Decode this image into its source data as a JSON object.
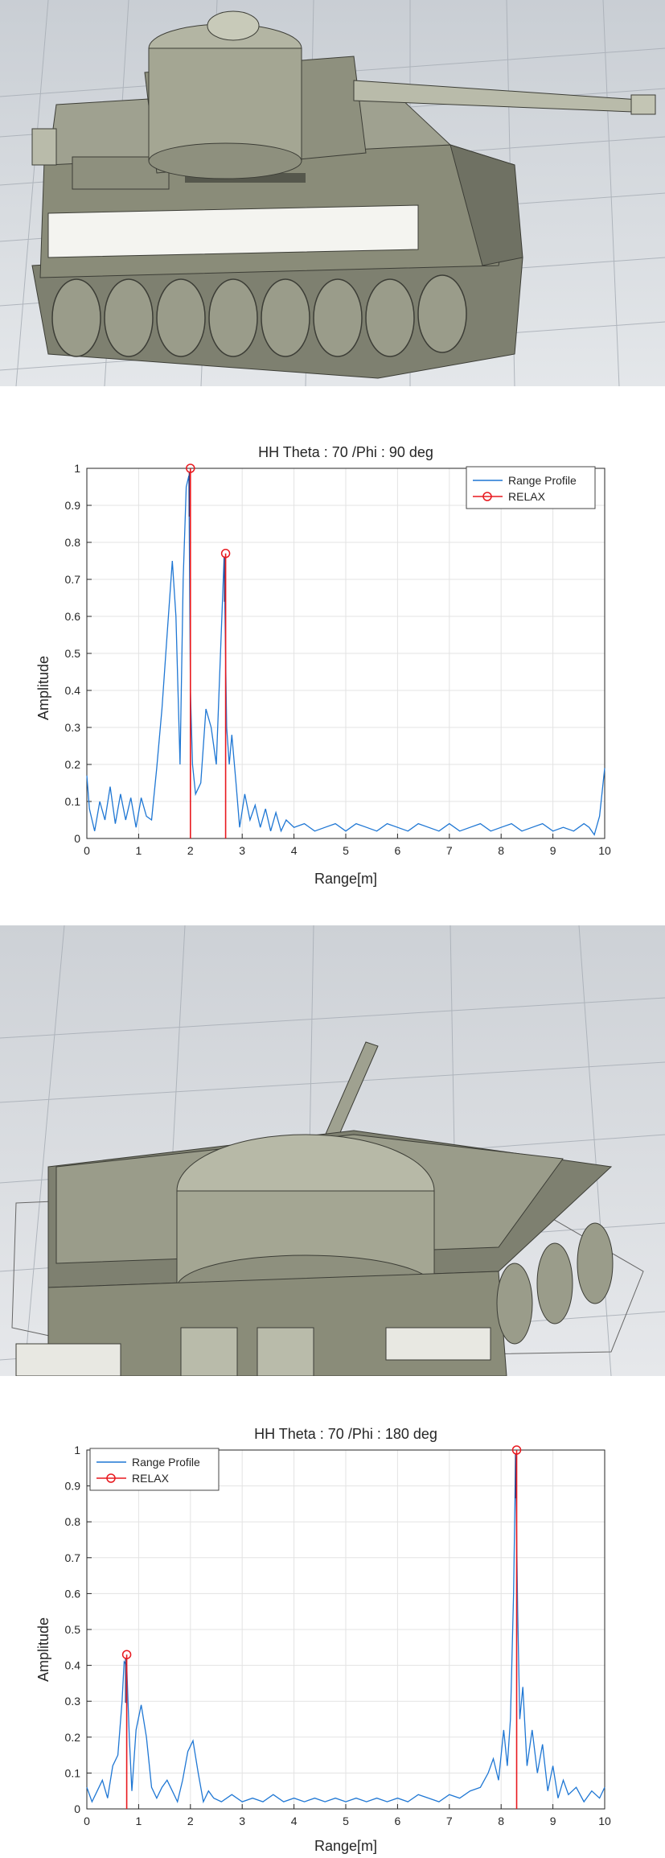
{
  "charts": [
    {
      "title": "HH Theta : 70 /Phi : 90 deg",
      "xlabel": "Range[m]",
      "ylabel": "Amplitude",
      "legend": [
        "Range Profile",
        "RELAX"
      ],
      "legend_position": "top-right"
    },
    {
      "title": "HH Theta : 70 /Phi : 180 deg",
      "xlabel": "Range[m]",
      "ylabel": "Amplitude",
      "legend": [
        "Range Profile",
        "RELAX"
      ],
      "legend_position": "top-left"
    }
  ],
  "colors": {
    "range_profile": "#1f77d4",
    "relax": "#e8191f",
    "stem_dark": "#2b2b6b"
  },
  "chart_data": [
    {
      "type": "line",
      "title": "HH Theta : 70 /Phi : 90 deg",
      "xlabel": "Range[m]",
      "ylabel": "Amplitude",
      "xlim": [
        0,
        10
      ],
      "ylim": [
        0,
        1
      ],
      "x_ticks": [
        0,
        1,
        2,
        3,
        4,
        5,
        6,
        7,
        8,
        9,
        10
      ],
      "y_ticks": [
        0,
        0.1,
        0.2,
        0.3,
        0.4,
        0.5,
        0.6,
        0.7,
        0.8,
        0.9,
        1
      ],
      "grid": true,
      "legend_position": "top-right",
      "series": [
        {
          "name": "Range Profile",
          "x": [
            0,
            0.05,
            0.15,
            0.25,
            0.35,
            0.45,
            0.55,
            0.65,
            0.75,
            0.85,
            0.95,
            1.05,
            1.15,
            1.25,
            1.35,
            1.45,
            1.55,
            1.65,
            1.72,
            1.8,
            1.86,
            1.92,
            1.97,
            2.0,
            2.04,
            2.1,
            2.2,
            2.3,
            2.4,
            2.5,
            2.58,
            2.65,
            2.7,
            2.75,
            2.8,
            2.88,
            2.95,
            3.05,
            3.15,
            3.25,
            3.35,
            3.45,
            3.55,
            3.65,
            3.75,
            3.85,
            4.0,
            4.2,
            4.4,
            4.6,
            4.8,
            5.0,
            5.2,
            5.4,
            5.6,
            5.8,
            6.0,
            6.2,
            6.4,
            6.6,
            6.8,
            7.0,
            7.2,
            7.4,
            7.6,
            7.8,
            8.0,
            8.2,
            8.4,
            8.6,
            8.8,
            9.0,
            9.2,
            9.4,
            9.6,
            9.7,
            9.8,
            9.9,
            10.0
          ],
          "y": [
            0.17,
            0.08,
            0.02,
            0.1,
            0.05,
            0.14,
            0.04,
            0.12,
            0.05,
            0.11,
            0.03,
            0.11,
            0.06,
            0.05,
            0.19,
            0.35,
            0.55,
            0.75,
            0.6,
            0.2,
            0.7,
            0.95,
            0.98,
            0.4,
            0.2,
            0.12,
            0.15,
            0.35,
            0.3,
            0.2,
            0.5,
            0.76,
            0.3,
            0.2,
            0.28,
            0.15,
            0.03,
            0.12,
            0.05,
            0.09,
            0.03,
            0.08,
            0.02,
            0.07,
            0.02,
            0.05,
            0.03,
            0.04,
            0.02,
            0.03,
            0.04,
            0.02,
            0.04,
            0.03,
            0.02,
            0.04,
            0.03,
            0.02,
            0.04,
            0.03,
            0.02,
            0.04,
            0.02,
            0.03,
            0.04,
            0.02,
            0.03,
            0.04,
            0.02,
            0.03,
            0.04,
            0.02,
            0.03,
            0.02,
            0.04,
            0.03,
            0.01,
            0.06,
            0.19
          ]
        },
        {
          "name": "RELAX",
          "x": [
            2.0,
            2.68
          ],
          "y": [
            1.0,
            0.77
          ]
        }
      ]
    },
    {
      "type": "line",
      "title": "HH Theta : 70 /Phi : 180 deg",
      "xlabel": "Range[m]",
      "ylabel": "Amplitude",
      "xlim": [
        0,
        10
      ],
      "ylim": [
        0,
        1
      ],
      "x_ticks": [
        0,
        1,
        2,
        3,
        4,
        5,
        6,
        7,
        8,
        9,
        10
      ],
      "y_ticks": [
        0,
        0.1,
        0.2,
        0.3,
        0.4,
        0.5,
        0.6,
        0.7,
        0.8,
        0.9,
        1
      ],
      "grid": true,
      "legend_position": "top-left",
      "series": [
        {
          "name": "Range Profile",
          "x": [
            0,
            0.1,
            0.2,
            0.3,
            0.4,
            0.5,
            0.6,
            0.68,
            0.72,
            0.77,
            0.82,
            0.87,
            0.95,
            1.05,
            1.15,
            1.25,
            1.35,
            1.45,
            1.55,
            1.65,
            1.75,
            1.85,
            1.95,
            2.05,
            2.15,
            2.25,
            2.35,
            2.45,
            2.6,
            2.8,
            3.0,
            3.2,
            3.4,
            3.6,
            3.8,
            4.0,
            4.2,
            4.4,
            4.6,
            4.8,
            5.0,
            5.2,
            5.4,
            5.6,
            5.8,
            6.0,
            6.2,
            6.4,
            6.6,
            6.8,
            7.0,
            7.2,
            7.4,
            7.6,
            7.75,
            7.85,
            7.95,
            8.05,
            8.12,
            8.18,
            8.24,
            8.28,
            8.32,
            8.36,
            8.42,
            8.5,
            8.6,
            8.7,
            8.8,
            8.9,
            9.0,
            9.1,
            9.2,
            9.3,
            9.45,
            9.6,
            9.75,
            9.9,
            10.0
          ],
          "y": [
            0.06,
            0.02,
            0.05,
            0.08,
            0.03,
            0.12,
            0.15,
            0.3,
            0.41,
            0.4,
            0.2,
            0.05,
            0.22,
            0.29,
            0.2,
            0.06,
            0.03,
            0.06,
            0.08,
            0.05,
            0.02,
            0.08,
            0.16,
            0.19,
            0.1,
            0.02,
            0.05,
            0.03,
            0.02,
            0.04,
            0.02,
            0.03,
            0.02,
            0.04,
            0.02,
            0.03,
            0.02,
            0.03,
            0.02,
            0.03,
            0.02,
            0.03,
            0.02,
            0.03,
            0.02,
            0.03,
            0.02,
            0.04,
            0.03,
            0.02,
            0.04,
            0.03,
            0.05,
            0.06,
            0.1,
            0.14,
            0.08,
            0.22,
            0.12,
            0.25,
            0.6,
            0.98,
            0.55,
            0.25,
            0.34,
            0.12,
            0.22,
            0.1,
            0.18,
            0.05,
            0.12,
            0.03,
            0.08,
            0.04,
            0.06,
            0.02,
            0.05,
            0.03,
            0.06
          ]
        },
        {
          "name": "RELAX",
          "x": [
            0.77,
            8.3
          ],
          "y": [
            0.43,
            1.0
          ]
        }
      ]
    }
  ]
}
